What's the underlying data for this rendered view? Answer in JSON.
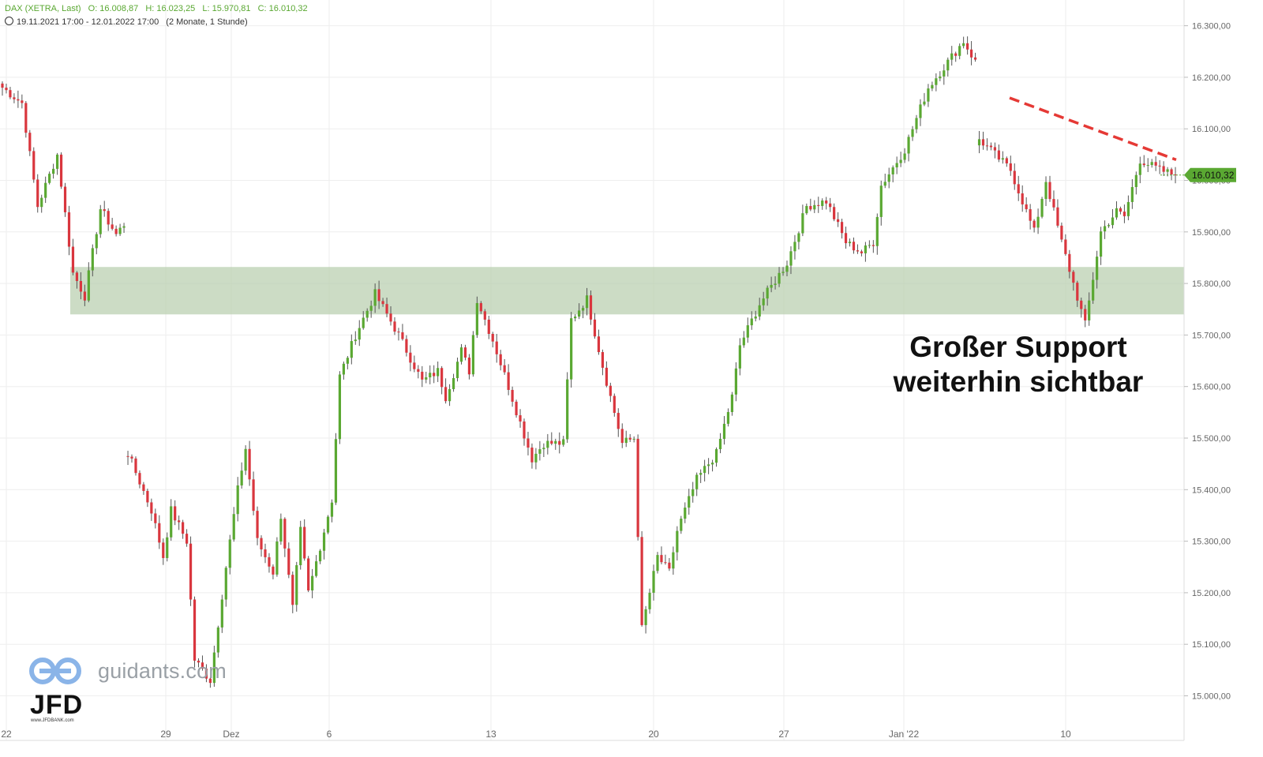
{
  "header": {
    "instrument": "DAX (XETRA, Last)",
    "open": "O: 16.008,87",
    "high": "H: 16.023,25",
    "low": "L: 15.970,81",
    "close": "C: 16.010,32",
    "period": "19.11.2021 17:00 - 12.01.2022 17:00",
    "interval": "(2 Monate, 1 Stunde)"
  },
  "annotation": {
    "line1": "Großer Support",
    "line2": "weiterhin sichtbar"
  },
  "watermark": {
    "text": "guidants.com",
    "brand": "JFD",
    "brand_sub": "www.JFDBANK.com"
  },
  "colors": {
    "up": "#5aa832",
    "down": "#d9363e",
    "support_zone": "#b9cfae",
    "trendline": "#e53935",
    "grid": "#eeeeee",
    "axis_text": "#666666"
  },
  "chart_data": {
    "type": "candlestick",
    "y_axis": {
      "side": "right",
      "min": 14950,
      "max": 16340,
      "ticks": [
        15000,
        15100,
        15200,
        15300,
        15400,
        15500,
        15600,
        15700,
        15800,
        15900,
        16000,
        16100,
        16200,
        16300
      ],
      "tick_labels": [
        "15.000,00",
        "15.100,00",
        "15.200,00",
        "15.300,00",
        "15.400,00",
        "15.500,00",
        "15.600,00",
        "15.700,00",
        "15.800,00",
        "15.900,00",
        "16.000,00",
        "16.100,00",
        "16.200,00",
        "16.300,00"
      ]
    },
    "x_axis": {
      "labels": [
        "22",
        "29",
        "Dez",
        "6",
        "13",
        "20",
        "27",
        "Jan '22",
        "10"
      ]
    },
    "last_price": {
      "value": 16010.32,
      "label": "16.010,32"
    },
    "support_zone": {
      "low": 15740,
      "high": 15832
    },
    "trendline": {
      "from": 16160,
      "to": 16040
    },
    "path": [
      [
        16180,
        0
      ],
      [
        16150,
        5
      ],
      [
        15950,
        9
      ],
      [
        16050,
        14
      ],
      [
        15820,
        18
      ],
      [
        15775,
        21
      ],
      [
        15860,
        23
      ],
      [
        15945,
        25
      ],
      [
        15895,
        29
      ],
      [
        15915,
        31
      ],
      [
        15470,
        32
      ],
      [
        15360,
        38
      ],
      [
        15270,
        41
      ],
      [
        15360,
        43
      ],
      [
        15300,
        47
      ],
      [
        15070,
        49
      ],
      [
        15030,
        53
      ],
      [
        15250,
        57
      ],
      [
        15400,
        60
      ],
      [
        15480,
        62
      ],
      [
        15300,
        65
      ],
      [
        15240,
        69
      ],
      [
        15350,
        71
      ],
      [
        15170,
        74
      ],
      [
        15320,
        76
      ],
      [
        15200,
        78
      ],
      [
        15260,
        80
      ],
      [
        15380,
        84
      ],
      [
        15620,
        86
      ],
      [
        15700,
        90
      ],
      [
        15780,
        95
      ],
      [
        15700,
        101
      ],
      [
        15610,
        107
      ],
      [
        15630,
        111
      ],
      [
        15580,
        113
      ],
      [
        15670,
        117
      ],
      [
        15630,
        119
      ],
      [
        15770,
        121
      ],
      [
        15690,
        125
      ],
      [
        15600,
        129
      ],
      [
        15460,
        135
      ],
      [
        15490,
        138
      ],
      [
        15490,
        143
      ],
      [
        15730,
        145
      ],
      [
        15770,
        149
      ],
      [
        15640,
        153
      ],
      [
        15490,
        158
      ],
      [
        15500,
        161
      ],
      [
        15130,
        163
      ],
      [
        15270,
        167
      ],
      [
        15240,
        170
      ],
      [
        15320,
        172
      ],
      [
        15420,
        177
      ],
      [
        15470,
        182
      ],
      [
        15580,
        186
      ],
      [
        15680,
        188
      ],
      [
        15760,
        193
      ],
      [
        15840,
        200
      ],
      [
        15950,
        205
      ],
      [
        15960,
        210
      ],
      [
        15880,
        215
      ],
      [
        15860,
        219
      ],
      [
        15880,
        222
      ],
      [
        15990,
        224
      ],
      [
        16060,
        230
      ],
      [
        16180,
        236
      ],
      [
        16270,
        245
      ],
      [
        16230,
        248
      ],
      [
        16080,
        249
      ],
      [
        16020,
        257
      ],
      [
        15900,
        263
      ],
      [
        16000,
        266
      ],
      [
        15880,
        270
      ],
      [
        15720,
        276
      ],
      [
        15900,
        280
      ],
      [
        15940,
        284
      ],
      [
        15930,
        286
      ],
      [
        16040,
        290
      ],
      [
        16020,
        295
      ],
      [
        16010,
        299
      ]
    ]
  }
}
